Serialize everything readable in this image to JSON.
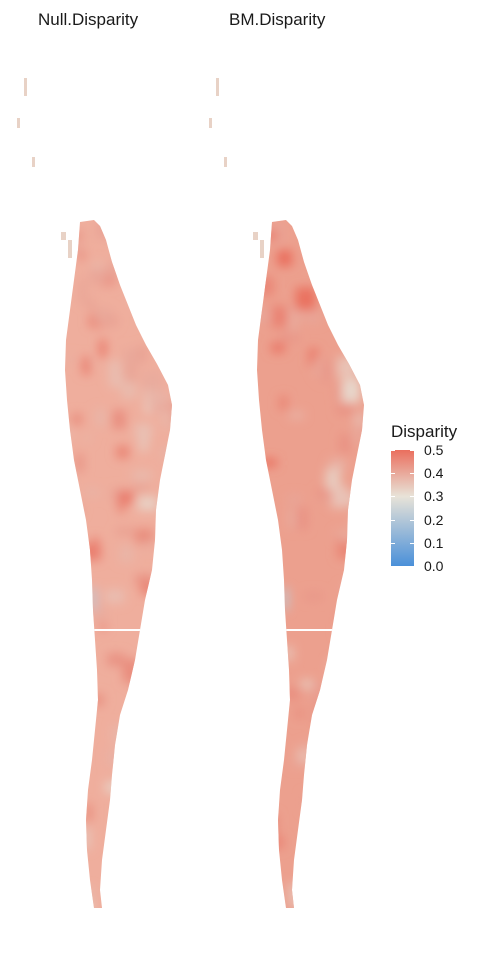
{
  "panels": [
    {
      "title": "Null.Disparity"
    },
    {
      "title": "BM.Disparity"
    }
  ],
  "legend": {
    "title": "Disparity",
    "ticks": [
      "0.5",
      "0.4",
      "0.3",
      "0.2",
      "0.1",
      "0.0"
    ],
    "tick_values": [
      0.5,
      0.4,
      0.3,
      0.2,
      0.1,
      0.0
    ],
    "range": [
      0.0,
      0.5
    ],
    "low_color": "#4a90d9",
    "mid_color": "#e8e3d8",
    "high_color": "#ea6f5e",
    "midpoint": 0.3
  },
  "map_notes": {
    "typical_null": 0.42,
    "typical_bm": 0.44
  }
}
